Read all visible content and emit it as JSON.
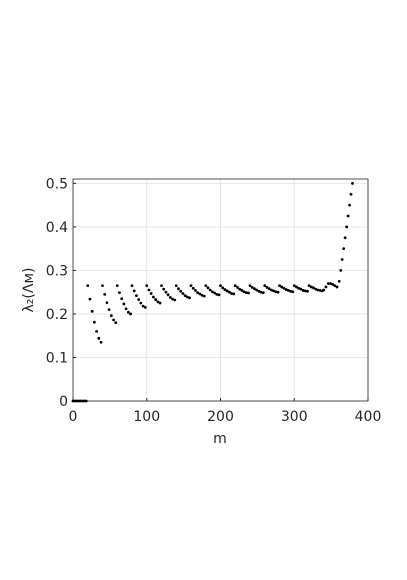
{
  "chart_data": {
    "type": "scatter",
    "xlabel": "m",
    "ylabel": "λ₂(Λᴍ)",
    "xlim": [
      0,
      400
    ],
    "ylim": [
      0,
      0.51
    ],
    "xticks": [
      0,
      100,
      200,
      300,
      400
    ],
    "yticks": [
      0,
      0.1,
      0.2,
      0.3,
      0.4,
      0.5
    ],
    "grid": true,
    "series": [
      {
        "color": "#000000",
        "x": [
          0,
          2,
          4,
          6,
          8,
          10,
          12,
          14,
          16,
          18,
          20,
          23,
          26,
          29,
          32,
          35,
          38,
          40,
          43,
          46,
          49,
          52,
          55,
          58,
          60,
          63,
          66,
          69,
          72,
          75,
          78,
          80,
          83,
          86,
          89,
          92,
          95,
          98,
          100,
          103,
          106,
          109,
          112,
          115,
          118,
          120,
          123,
          126,
          129,
          132,
          135,
          138,
          140,
          143,
          146,
          149,
          152,
          155,
          158,
          160,
          163,
          166,
          169,
          172,
          175,
          178,
          180,
          183,
          186,
          189,
          192,
          195,
          198,
          200,
          203,
          206,
          209,
          212,
          215,
          218,
          220,
          223,
          226,
          229,
          232,
          235,
          238,
          240,
          243,
          246,
          249,
          252,
          255,
          258,
          260,
          263,
          266,
          269,
          272,
          275,
          278,
          280,
          283,
          286,
          289,
          292,
          295,
          298,
          300,
          303,
          306,
          309,
          312,
          315,
          318,
          320,
          323,
          326,
          329,
          332,
          335,
          338,
          340,
          343,
          346,
          349,
          352,
          355,
          358,
          361,
          363,
          365,
          367,
          369,
          371,
          373,
          375,
          377,
          379
        ],
        "values": [
          0,
          0,
          0,
          0,
          0,
          0,
          0,
          0,
          0,
          0,
          0.265,
          0.234,
          0.206,
          0.181,
          0.16,
          0.144,
          0.135,
          0.265,
          0.245,
          0.226,
          0.21,
          0.196,
          0.186,
          0.18,
          0.265,
          0.249,
          0.235,
          0.223,
          0.212,
          0.204,
          0.2,
          0.265,
          0.253,
          0.242,
          0.233,
          0.225,
          0.218,
          0.215,
          0.265,
          0.255,
          0.247,
          0.239,
          0.233,
          0.228,
          0.225,
          0.265,
          0.257,
          0.25,
          0.244,
          0.238,
          0.234,
          0.232,
          0.265,
          0.258,
          0.252,
          0.247,
          0.242,
          0.239,
          0.237,
          0.265,
          0.259,
          0.254,
          0.249,
          0.246,
          0.243,
          0.241,
          0.265,
          0.26,
          0.255,
          0.251,
          0.248,
          0.245,
          0.244,
          0.265,
          0.26,
          0.256,
          0.253,
          0.25,
          0.247,
          0.246,
          0.265,
          0.261,
          0.257,
          0.254,
          0.251,
          0.249,
          0.248,
          0.265,
          0.261,
          0.258,
          0.255,
          0.252,
          0.25,
          0.249,
          0.265,
          0.261,
          0.258,
          0.255,
          0.253,
          0.251,
          0.25,
          0.265,
          0.262,
          0.259,
          0.256,
          0.254,
          0.252,
          0.251,
          0.265,
          0.262,
          0.259,
          0.257,
          0.254,
          0.253,
          0.252,
          0.265,
          0.262,
          0.26,
          0.257,
          0.255,
          0.254,
          0.253,
          0.255,
          0.262,
          0.27,
          0.27,
          0.268,
          0.265,
          0.262,
          0.275,
          0.3,
          0.325,
          0.35,
          0.375,
          0.4,
          0.425,
          0.45,
          0.475,
          0.5
        ]
      }
    ]
  }
}
